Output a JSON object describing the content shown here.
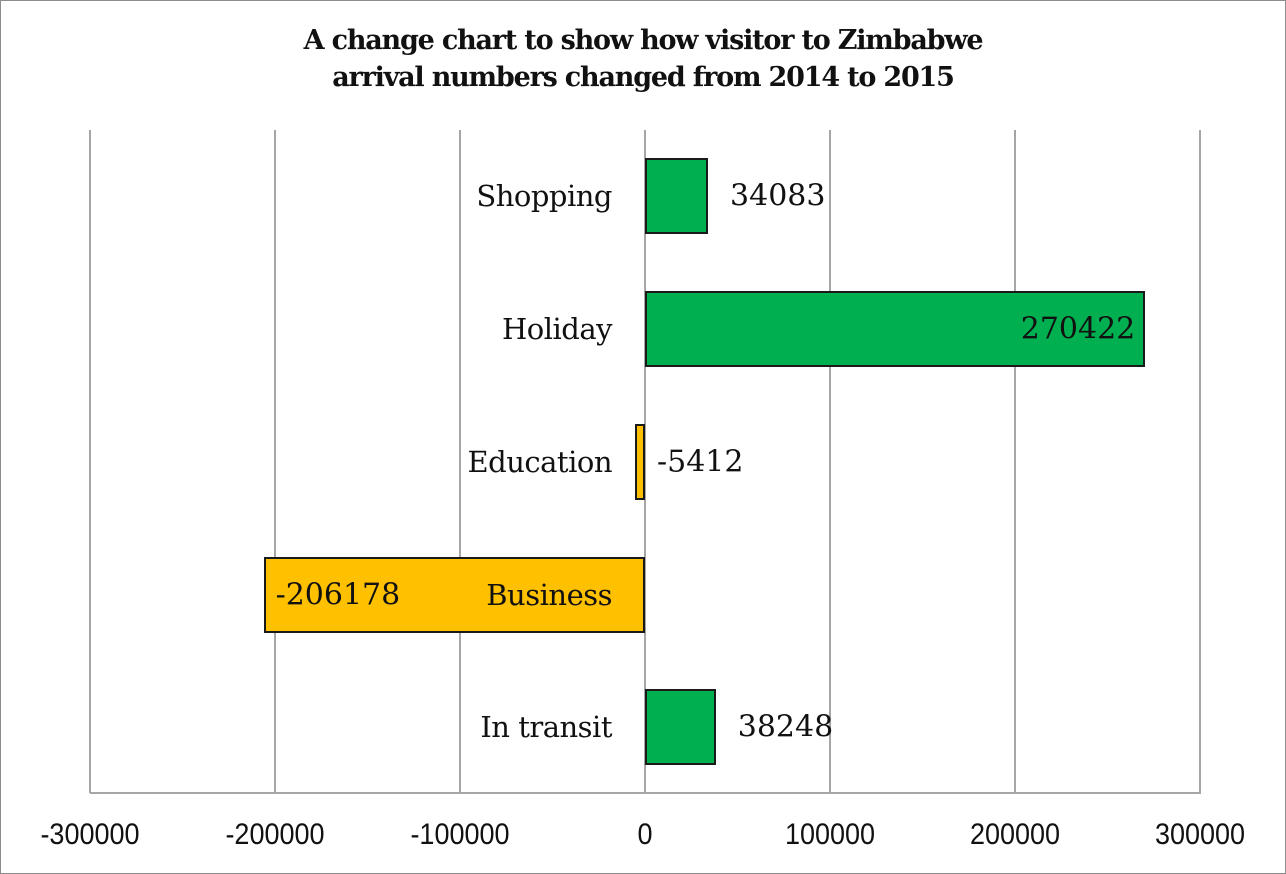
{
  "chart_data": {
    "type": "bar",
    "orientation": "horizontal",
    "title": "A change chart to show how visitor to Zimbabwe arrival numbers changed from 2014 to 2015",
    "title_lines": [
      "A change chart to show how visitor to Zimbabwe",
      "arrival numbers changed from 2014 to 2015"
    ],
    "categories": [
      "Shopping",
      "Holiday",
      "Education",
      "Business",
      "In transit"
    ],
    "values": [
      34083,
      270422,
      -5412,
      -206178,
      38248
    ],
    "data_labels": [
      "34083",
      "270422",
      "-5412",
      "-206178",
      "38248"
    ],
    "xlabel": "",
    "ylabel": "",
    "xlim": [
      -300000,
      300000
    ],
    "x_ticks": [
      "-300000",
      "-200000",
      "-100000",
      "0",
      "100000",
      "200000",
      "300000"
    ],
    "grid": "vertical",
    "legend": null,
    "colors": {
      "positive": "#00b050",
      "negative": "#ffc000",
      "bar_border": "#1a1a1a",
      "grid": "#a6a6a6"
    }
  }
}
